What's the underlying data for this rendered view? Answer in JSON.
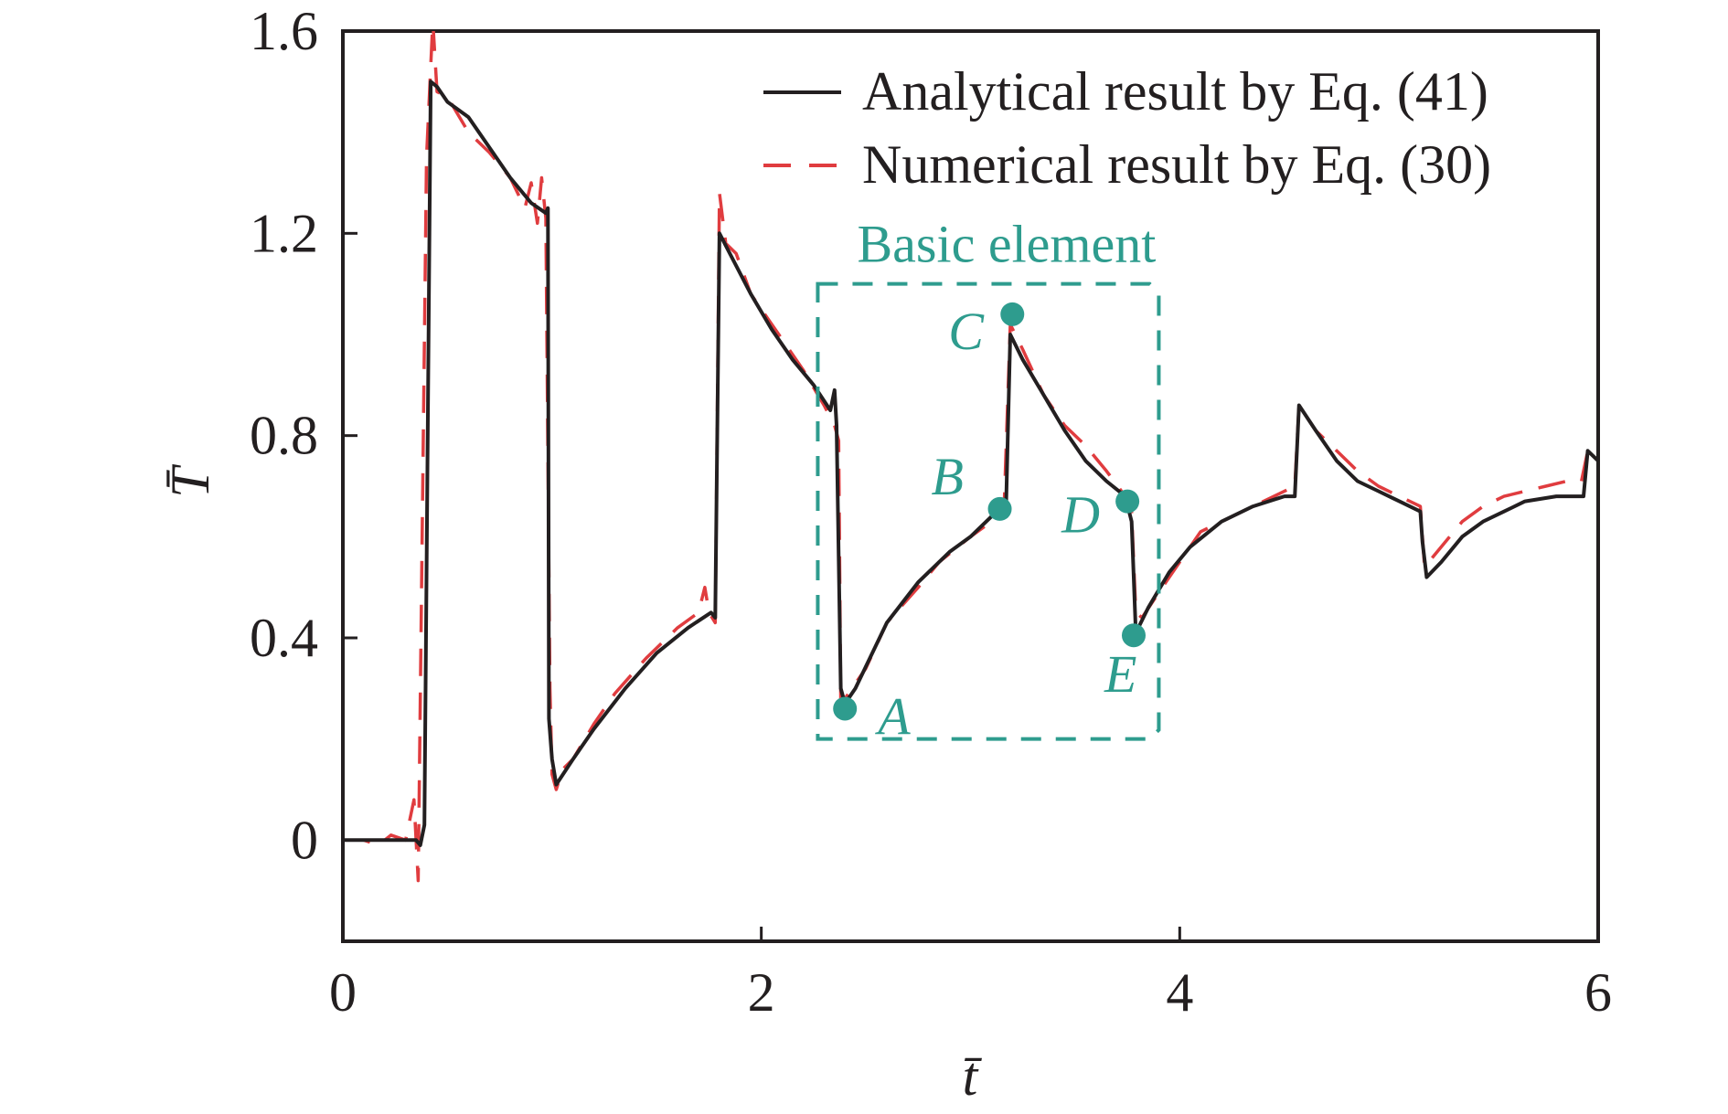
{
  "colors": {
    "analytical": "#231f20",
    "numerical": "#e03c3f",
    "annotation": "#2e9c8e",
    "axis": "#231f20"
  },
  "chart_data": {
    "type": "line",
    "xlabel": "t̄",
    "ylabel": "T̄",
    "xlim": [
      0,
      6
    ],
    "ylim": [
      -0.2,
      1.6
    ],
    "xticks": [
      0,
      2,
      4,
      6
    ],
    "yticks": [
      0,
      0.4,
      0.8,
      1.2,
      1.6
    ],
    "xtick_labels": [
      "0",
      "2",
      "4",
      "6"
    ],
    "ytick_labels": [
      "0",
      "0.4",
      "0.8",
      "1.2",
      "1.6"
    ],
    "grid": false,
    "legend_position": "top-right",
    "series": [
      {
        "name": "Analytical result by Eq. (41)",
        "style": "solid",
        "points": [
          [
            0,
            0
          ],
          [
            0.35,
            0
          ],
          [
            0.37,
            -0.01
          ],
          [
            0.39,
            0.03
          ],
          [
            0.42,
            1.5
          ],
          [
            0.45,
            1.49
          ],
          [
            0.5,
            1.46
          ],
          [
            0.6,
            1.43
          ],
          [
            0.7,
            1.37
          ],
          [
            0.8,
            1.31
          ],
          [
            0.9,
            1.26
          ],
          [
            0.97,
            1.24
          ],
          [
            0.98,
            1.25
          ],
          [
            0.985,
            0.24
          ],
          [
            1.0,
            0.16
          ],
          [
            1.02,
            0.11
          ],
          [
            1.1,
            0.16
          ],
          [
            1.2,
            0.22
          ],
          [
            1.35,
            0.3
          ],
          [
            1.5,
            0.37
          ],
          [
            1.65,
            0.42
          ],
          [
            1.76,
            0.45
          ],
          [
            1.78,
            0.44
          ],
          [
            1.8,
            1.2
          ],
          [
            1.85,
            1.16
          ],
          [
            1.95,
            1.08
          ],
          [
            2.05,
            1.01
          ],
          [
            2.15,
            0.95
          ],
          [
            2.25,
            0.9
          ],
          [
            2.33,
            0.85
          ],
          [
            2.35,
            0.89
          ],
          [
            2.36,
            0.82
          ],
          [
            2.38,
            0.3
          ],
          [
            2.4,
            0.27
          ],
          [
            2.45,
            0.3
          ],
          [
            2.6,
            0.43
          ],
          [
            2.75,
            0.51
          ],
          [
            2.9,
            0.57
          ],
          [
            3.0,
            0.6
          ],
          [
            3.1,
            0.64
          ],
          [
            3.14,
            0.65
          ],
          [
            3.17,
            0.66
          ],
          [
            3.19,
            1.0
          ],
          [
            3.25,
            0.95
          ],
          [
            3.35,
            0.88
          ],
          [
            3.45,
            0.81
          ],
          [
            3.55,
            0.75
          ],
          [
            3.65,
            0.71
          ],
          [
            3.74,
            0.68
          ],
          [
            3.77,
            0.63
          ],
          [
            3.79,
            0.41
          ],
          [
            3.85,
            0.46
          ],
          [
            3.95,
            0.53
          ],
          [
            4.05,
            0.58
          ],
          [
            4.2,
            0.63
          ],
          [
            4.35,
            0.66
          ],
          [
            4.5,
            0.68
          ],
          [
            4.55,
            0.68
          ],
          [
            4.57,
            0.86
          ],
          [
            4.65,
            0.81
          ],
          [
            4.75,
            0.75
          ],
          [
            4.85,
            0.71
          ],
          [
            4.95,
            0.69
          ],
          [
            5.05,
            0.67
          ],
          [
            5.15,
            0.65
          ],
          [
            5.16,
            0.59
          ],
          [
            5.18,
            0.52
          ],
          [
            5.25,
            0.55
          ],
          [
            5.35,
            0.6
          ],
          [
            5.45,
            0.63
          ],
          [
            5.55,
            0.65
          ],
          [
            5.65,
            0.67
          ],
          [
            5.8,
            0.68
          ],
          [
            5.93,
            0.68
          ],
          [
            5.95,
            0.77
          ],
          [
            6.0,
            0.75
          ]
        ]
      },
      {
        "name": "Numerical result by Eq. (30)",
        "style": "dashed",
        "points": [
          [
            0,
            0
          ],
          [
            0.1,
            0
          ],
          [
            0.17,
            -0.01
          ],
          [
            0.23,
            0.01
          ],
          [
            0.3,
            0.0
          ],
          [
            0.34,
            0.08
          ],
          [
            0.36,
            -0.08
          ],
          [
            0.4,
            1.35
          ],
          [
            0.43,
            1.62
          ],
          [
            0.45,
            1.48
          ],
          [
            0.5,
            1.47
          ],
          [
            0.6,
            1.4
          ],
          [
            0.7,
            1.36
          ],
          [
            0.8,
            1.31
          ],
          [
            0.87,
            1.25
          ],
          [
            0.9,
            1.3
          ],
          [
            0.93,
            1.22
          ],
          [
            0.95,
            1.31
          ],
          [
            0.97,
            1.23
          ],
          [
            0.99,
            0.3
          ],
          [
            1.0,
            0.13
          ],
          [
            1.02,
            0.1
          ],
          [
            1.05,
            0.14
          ],
          [
            1.1,
            0.16
          ],
          [
            1.2,
            0.23
          ],
          [
            1.3,
            0.29
          ],
          [
            1.45,
            0.36
          ],
          [
            1.6,
            0.42
          ],
          [
            1.7,
            0.45
          ],
          [
            1.73,
            0.5
          ],
          [
            1.75,
            0.45
          ],
          [
            1.78,
            0.43
          ],
          [
            1.8,
            1.28
          ],
          [
            1.83,
            1.18
          ],
          [
            1.88,
            1.16
          ],
          [
            1.95,
            1.08
          ],
          [
            2.1,
            0.99
          ],
          [
            2.2,
            0.93
          ],
          [
            2.3,
            0.86
          ],
          [
            2.35,
            0.82
          ],
          [
            2.37,
            0.79
          ],
          [
            2.38,
            0.27
          ],
          [
            2.4,
            0.28
          ],
          [
            2.5,
            0.34
          ],
          [
            2.6,
            0.43
          ],
          [
            2.75,
            0.5
          ],
          [
            2.85,
            0.55
          ],
          [
            3.0,
            0.6
          ],
          [
            3.1,
            0.63
          ],
          [
            3.16,
            0.65
          ],
          [
            3.19,
            1.02
          ],
          [
            3.25,
            0.97
          ],
          [
            3.35,
            0.88
          ],
          [
            3.45,
            0.82
          ],
          [
            3.55,
            0.78
          ],
          [
            3.65,
            0.73
          ],
          [
            3.74,
            0.68
          ],
          [
            3.77,
            0.65
          ],
          [
            3.79,
            0.45
          ],
          [
            3.82,
            0.44
          ],
          [
            3.9,
            0.49
          ],
          [
            4.0,
            0.55
          ],
          [
            4.1,
            0.61
          ],
          [
            4.25,
            0.64
          ],
          [
            4.4,
            0.67
          ],
          [
            4.55,
            0.7
          ],
          [
            4.57,
            0.86
          ],
          [
            4.65,
            0.81
          ],
          [
            4.75,
            0.77
          ],
          [
            4.85,
            0.73
          ],
          [
            4.95,
            0.7
          ],
          [
            5.05,
            0.68
          ],
          [
            5.15,
            0.66
          ],
          [
            5.17,
            0.54
          ],
          [
            5.25,
            0.58
          ],
          [
            5.35,
            0.63
          ],
          [
            5.45,
            0.66
          ],
          [
            5.55,
            0.68
          ],
          [
            5.65,
            0.69
          ],
          [
            5.75,
            0.7
          ],
          [
            5.85,
            0.71
          ],
          [
            5.92,
            0.71
          ],
          [
            5.95,
            0.77
          ]
        ]
      }
    ],
    "annotations": {
      "box_title": "Basic element",
      "points": [
        {
          "label": "A",
          "x": 2.4,
          "y": 0.26
        },
        {
          "label": "B",
          "x": 3.14,
          "y": 0.655
        },
        {
          "label": "C",
          "x": 3.2,
          "y": 1.04
        },
        {
          "label": "D",
          "x": 3.75,
          "y": 0.67
        },
        {
          "label": "E",
          "x": 3.78,
          "y": 0.405
        }
      ]
    }
  }
}
